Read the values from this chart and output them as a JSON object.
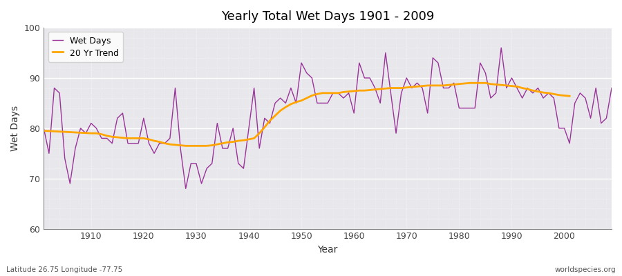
{
  "title": "Yearly Total Wet Days 1901 - 2009",
  "xlabel": "Year",
  "ylabel": "Wet Days",
  "subtitle_left": "Latitude 26.75 Longitude -77.75",
  "subtitle_right": "worldspecies.org",
  "line_color": "#993399",
  "trend_color": "#ffa500",
  "bg_color": "#e8e8ec",
  "fig_color": "#ffffff",
  "ylim": [
    60,
    100
  ],
  "xlim": [
    1901,
    2009
  ],
  "yticks": [
    60,
    70,
    80,
    90,
    100
  ],
  "xticks": [
    1910,
    1920,
    1930,
    1940,
    1950,
    1960,
    1970,
    1980,
    1990,
    2000
  ],
  "wet_days": {
    "1901": 80,
    "1902": 75,
    "1903": 88,
    "1904": 87,
    "1905": 74,
    "1906": 69,
    "1907": 76,
    "1908": 80,
    "1909": 79,
    "1910": 81,
    "1911": 80,
    "1912": 78,
    "1913": 78,
    "1914": 77,
    "1915": 82,
    "1916": 83,
    "1917": 77,
    "1918": 77,
    "1919": 77,
    "1920": 82,
    "1921": 77,
    "1922": 75,
    "1923": 77,
    "1924": 77,
    "1925": 78,
    "1926": 88,
    "1927": 76,
    "1928": 68,
    "1929": 73,
    "1930": 73,
    "1931": 69,
    "1932": 72,
    "1933": 73,
    "1934": 81,
    "1935": 76,
    "1936": 76,
    "1937": 80,
    "1938": 73,
    "1939": 72,
    "1940": 80,
    "1941": 88,
    "1942": 76,
    "1943": 82,
    "1944": 81,
    "1945": 85,
    "1946": 86,
    "1947": 85,
    "1948": 88,
    "1949": 85,
    "1950": 93,
    "1951": 91,
    "1952": 90,
    "1953": 85,
    "1954": 85,
    "1955": 85,
    "1956": 87,
    "1957": 87,
    "1958": 86,
    "1959": 87,
    "1960": 83,
    "1961": 93,
    "1962": 90,
    "1963": 90,
    "1964": 88,
    "1965": 85,
    "1966": 95,
    "1967": 87,
    "1968": 79,
    "1969": 87,
    "1970": 90,
    "1971": 88,
    "1972": 89,
    "1973": 88,
    "1974": 83,
    "1975": 94,
    "1976": 93,
    "1977": 88,
    "1978": 88,
    "1979": 89,
    "1980": 84,
    "1981": 84,
    "1982": 84,
    "1983": 84,
    "1984": 93,
    "1985": 91,
    "1986": 86,
    "1987": 87,
    "1988": 96,
    "1989": 88,
    "1990": 90,
    "1991": 88,
    "1992": 86,
    "1993": 88,
    "1994": 87,
    "1995": 88,
    "1996": 86,
    "1997": 87,
    "1998": 86,
    "1999": 80,
    "2000": 80,
    "2001": 77,
    "2002": 85,
    "2003": 87,
    "2004": 86,
    "2005": 82,
    "2006": 88,
    "2007": 81,
    "2008": 82,
    "2009": 88
  },
  "trend_days": {
    "1901": 79.5,
    "1910": 79,
    "1911": 79,
    "1912": 78.8,
    "1913": 78.5,
    "1914": 78.3,
    "1915": 78.2,
    "1916": 78.1,
    "1917": 78.0,
    "1918": 78.0,
    "1919": 78.0,
    "1920": 78.0,
    "1921": 77.8,
    "1922": 77.5,
    "1923": 77.3,
    "1924": 77.0,
    "1925": 76.8,
    "1926": 76.7,
    "1927": 76.6,
    "1928": 76.5,
    "1929": 76.5,
    "1930": 76.5,
    "1931": 76.5,
    "1932": 76.5,
    "1933": 76.6,
    "1934": 76.8,
    "1935": 77.0,
    "1936": 77.2,
    "1937": 77.3,
    "1938": 77.5,
    "1939": 77.6,
    "1940": 77.8,
    "1941": 78.0,
    "1942": 79.0,
    "1943": 80.2,
    "1944": 81.5,
    "1945": 82.5,
    "1946": 83.5,
    "1947": 84.2,
    "1948": 84.8,
    "1949": 85.2,
    "1950": 85.5,
    "1951": 86.0,
    "1952": 86.5,
    "1953": 86.8,
    "1954": 87.0,
    "1955": 87.0,
    "1956": 87.0,
    "1957": 87.0,
    "1958": 87.2,
    "1959": 87.3,
    "1960": 87.4,
    "1961": 87.5,
    "1962": 87.5,
    "1963": 87.6,
    "1964": 87.7,
    "1965": 87.8,
    "1966": 87.9,
    "1967": 88.0,
    "1968": 88.0,
    "1969": 88.0,
    "1970": 88.1,
    "1971": 88.2,
    "1972": 88.3,
    "1973": 88.4,
    "1974": 88.5,
    "1975": 88.5,
    "1976": 88.5,
    "1977": 88.5,
    "1978": 88.6,
    "1979": 88.7,
    "1980": 88.8,
    "1981": 88.9,
    "1982": 89.0,
    "1983": 89.0,
    "1984": 89.0,
    "1985": 89.0,
    "1986": 88.8,
    "1987": 88.7,
    "1988": 88.6,
    "1989": 88.5,
    "1990": 88.4,
    "1991": 88.3,
    "1992": 88.0,
    "1993": 87.8,
    "1994": 87.5,
    "1995": 87.3,
    "1996": 87.1,
    "1997": 87.0,
    "1998": 86.8,
    "1999": 86.6,
    "2000": 86.5,
    "2001": 86.4
  }
}
